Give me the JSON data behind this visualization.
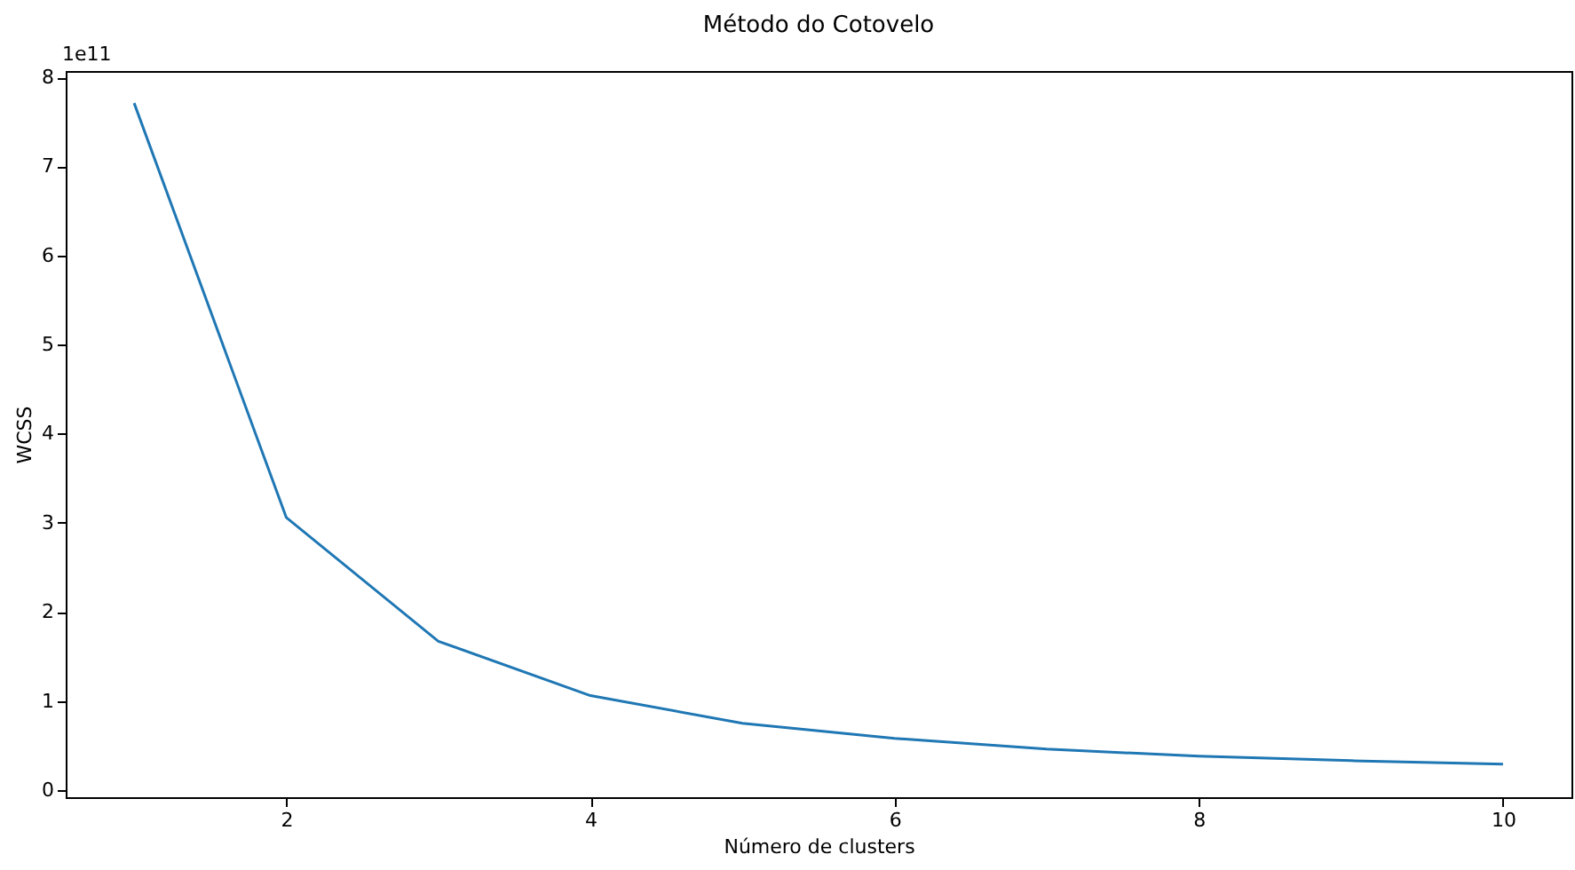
{
  "chart_data": {
    "type": "line",
    "title": "Método do Cotovelo",
    "xlabel": "Número de clusters",
    "ylabel": "WCSS",
    "annotations": [
      "1e11"
    ],
    "x": [
      1,
      2,
      3,
      4,
      5,
      6,
      7,
      8,
      9,
      10
    ],
    "series": [
      {
        "color": "#1f77b4",
        "values": [
          7.71,
          3.06,
          1.67,
          1.06,
          0.75,
          0.58,
          0.46,
          0.38,
          0.33,
          0.29
        ]
      }
    ],
    "xlim": [
      0.55,
      10.45
    ],
    "xticks": [
      2,
      4,
      6,
      8,
      10
    ],
    "ylim": [
      -0.08,
      8.07
    ],
    "yticks": [
      0,
      1,
      2,
      3,
      4,
      5,
      6,
      7,
      8
    ],
    "grid": false,
    "marker": "none",
    "line_style": "solid"
  }
}
